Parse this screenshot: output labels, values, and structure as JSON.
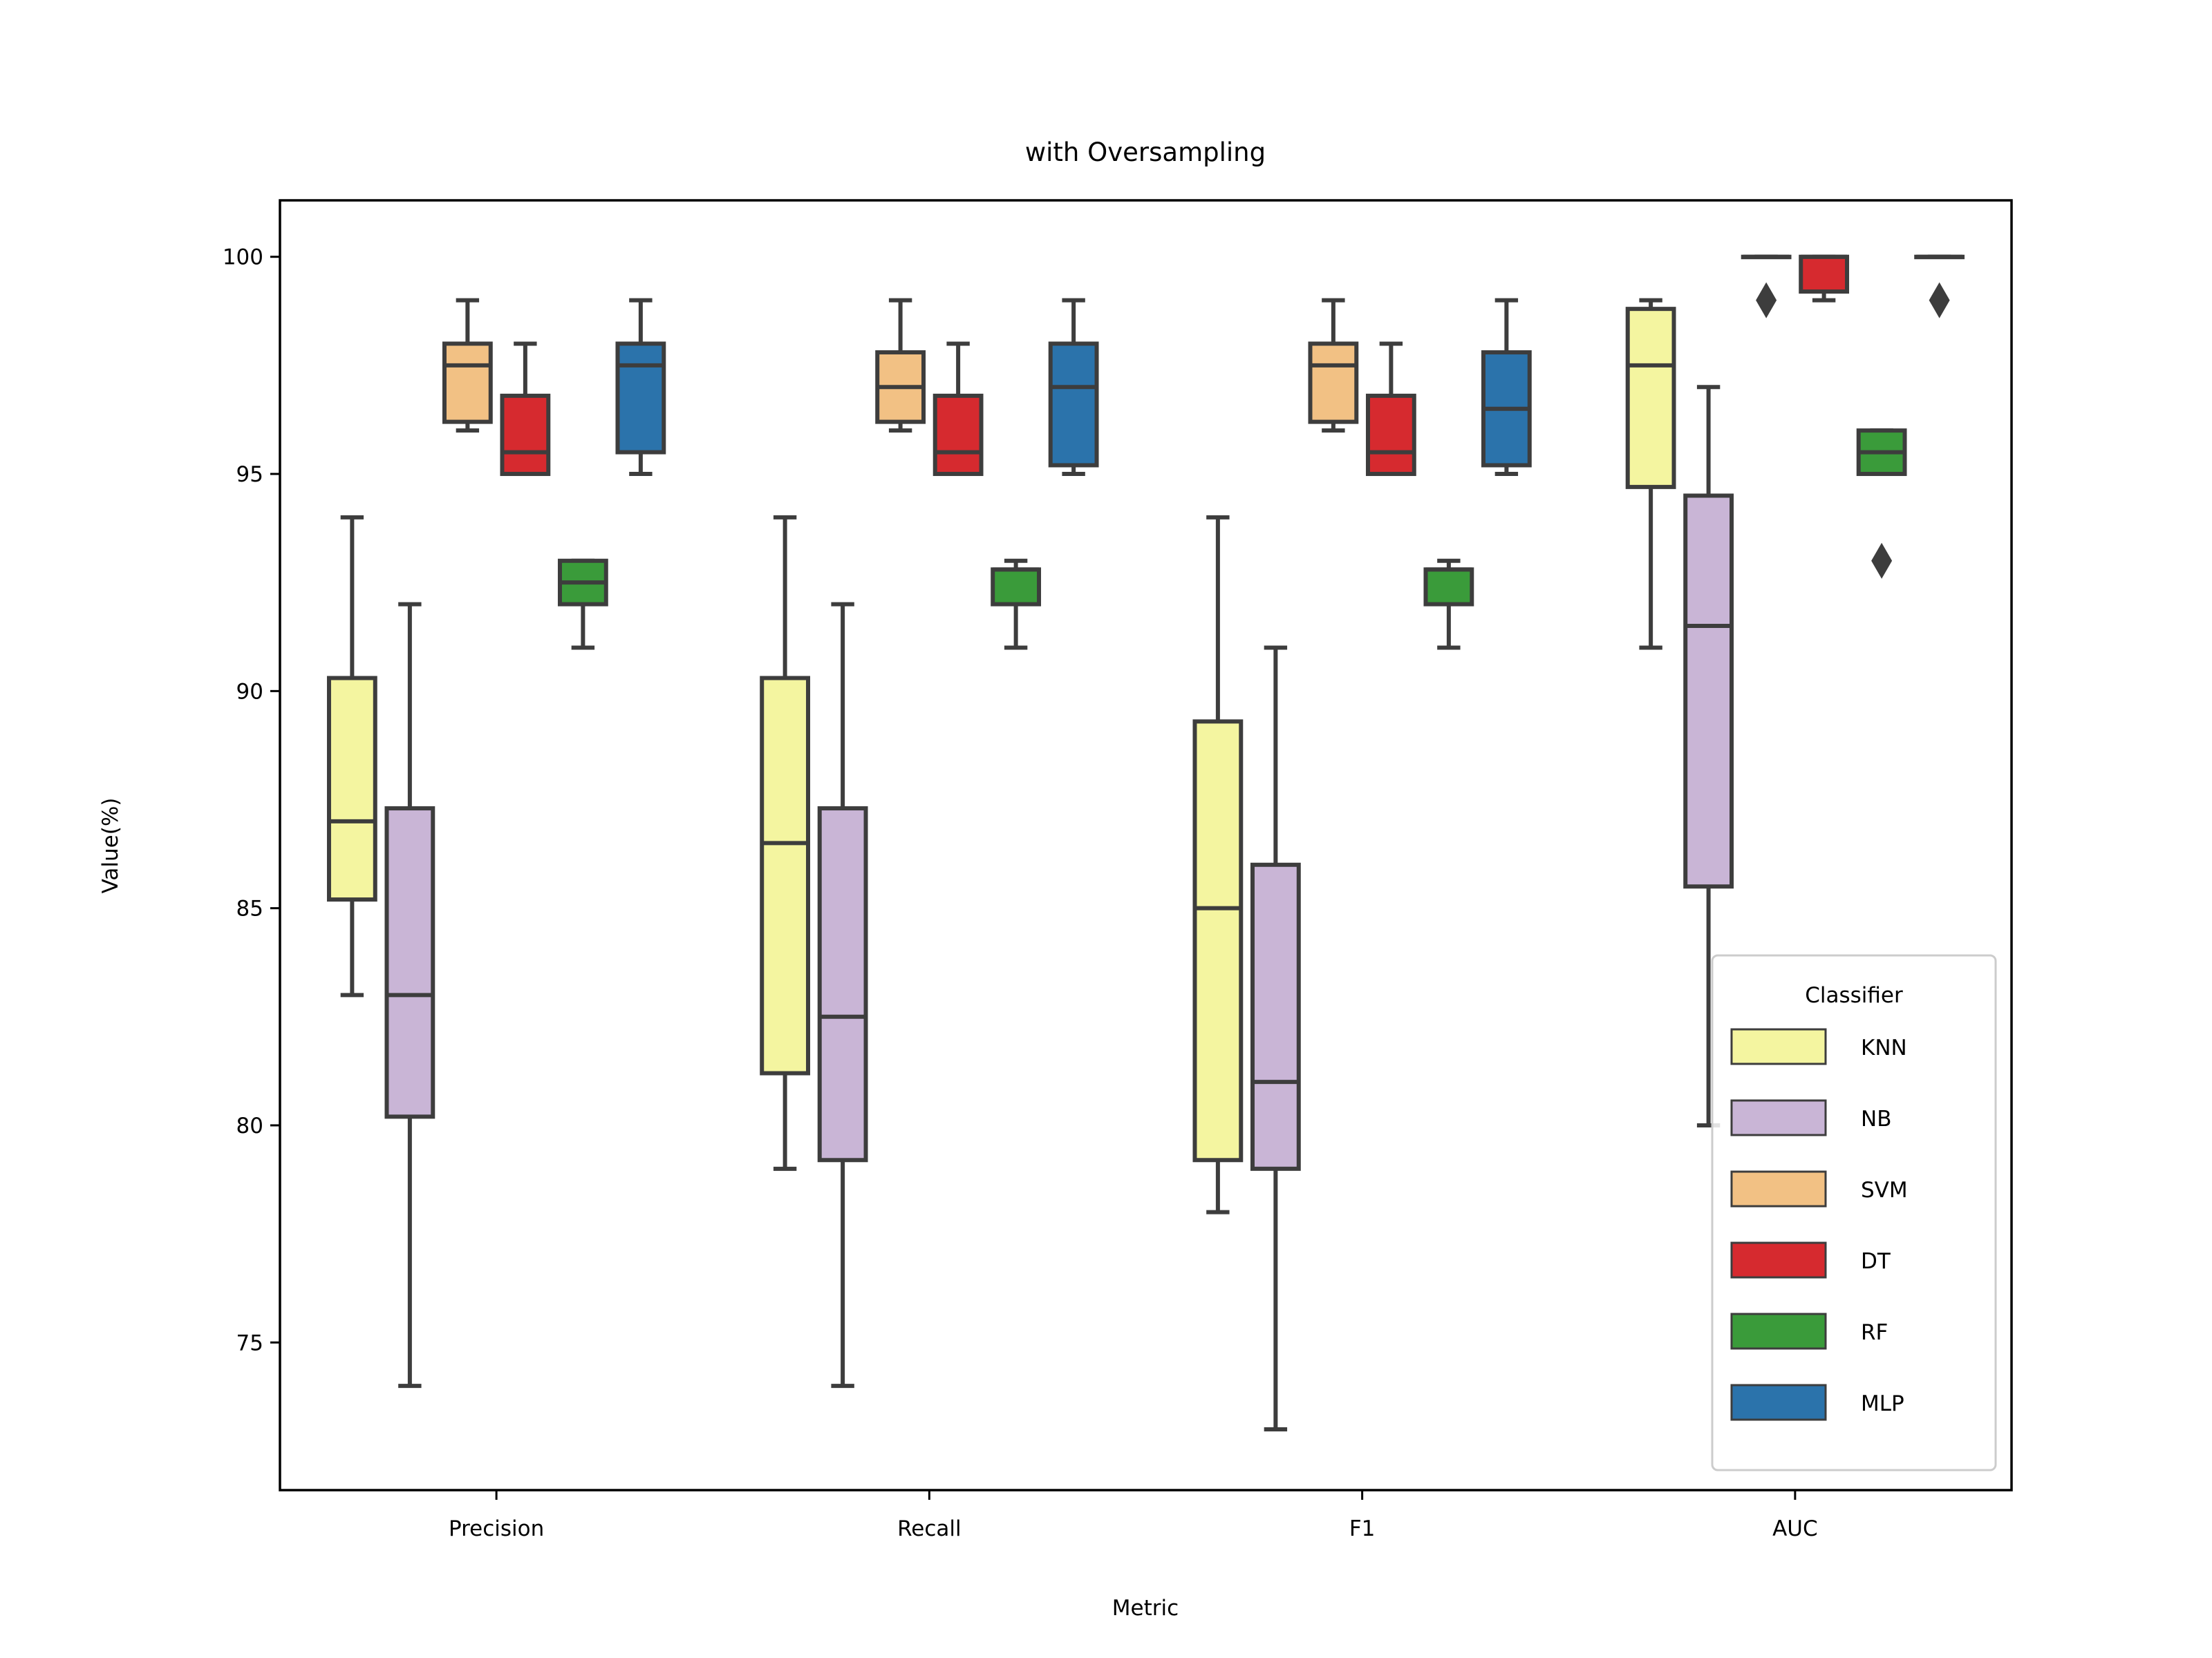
{
  "chart_data": {
    "type": "box",
    "title": "with Oversampling",
    "xlabel": "Metric",
    "ylabel": "Value(%)",
    "ylim": [
      71.6,
      101.3
    ],
    "yticks": [
      75,
      80,
      85,
      90,
      95,
      100
    ],
    "categories": [
      "Precision",
      "Recall",
      "F1",
      "AUC"
    ],
    "legend": {
      "title": "Classifier",
      "placement": "lower-right"
    },
    "grid": false,
    "series": [
      {
        "name": "KNN",
        "color": "#f4f5a0",
        "boxes": [
          {
            "whisker_low": 83,
            "q1": 85.2,
            "median": 87,
            "q3": 90.3,
            "whisker_high": 94,
            "outliers": []
          },
          {
            "whisker_low": 79,
            "q1": 81.2,
            "median": 86.5,
            "q3": 90.3,
            "whisker_high": 94,
            "outliers": []
          },
          {
            "whisker_low": 78,
            "q1": 79.2,
            "median": 85,
            "q3": 89.3,
            "whisker_high": 94,
            "outliers": []
          },
          {
            "whisker_low": 91,
            "q1": 94.7,
            "median": 97.5,
            "q3": 98.8,
            "whisker_high": 99,
            "outliers": []
          }
        ]
      },
      {
        "name": "NB",
        "color": "#c9b5d6",
        "boxes": [
          {
            "whisker_low": 74,
            "q1": 80.2,
            "median": 83,
            "q3": 87.3,
            "whisker_high": 92,
            "outliers": []
          },
          {
            "whisker_low": 74,
            "q1": 79.2,
            "median": 82.5,
            "q3": 87.3,
            "whisker_high": 92,
            "outliers": []
          },
          {
            "whisker_low": 73,
            "q1": 79,
            "median": 81,
            "q3": 86,
            "whisker_high": 91,
            "outliers": []
          },
          {
            "whisker_low": 80,
            "q1": 85.5,
            "median": 91.5,
            "q3": 94.5,
            "whisker_high": 97,
            "outliers": []
          }
        ]
      },
      {
        "name": "SVM",
        "color": "#f2c184",
        "boxes": [
          {
            "whisker_low": 96,
            "q1": 96.2,
            "median": 97.5,
            "q3": 98,
            "whisker_high": 99,
            "outliers": []
          },
          {
            "whisker_low": 96,
            "q1": 96.2,
            "median": 97,
            "q3": 97.8,
            "whisker_high": 99,
            "outliers": []
          },
          {
            "whisker_low": 96,
            "q1": 96.2,
            "median": 97.5,
            "q3": 98,
            "whisker_high": 99,
            "outliers": []
          },
          {
            "whisker_low": 100,
            "q1": 100,
            "median": 100,
            "q3": 100,
            "whisker_high": 100,
            "outliers": [
              99
            ]
          }
        ]
      },
      {
        "name": "DT",
        "color": "#d62a2f",
        "boxes": [
          {
            "whisker_low": 95,
            "q1": 95,
            "median": 95.5,
            "q3": 96.8,
            "whisker_high": 98,
            "outliers": []
          },
          {
            "whisker_low": 95,
            "q1": 95,
            "median": 95.5,
            "q3": 96.8,
            "whisker_high": 98,
            "outliers": []
          },
          {
            "whisker_low": 95,
            "q1": 95,
            "median": 95.5,
            "q3": 96.8,
            "whisker_high": 98,
            "outliers": []
          },
          {
            "whisker_low": 99,
            "q1": 99.2,
            "median": 100,
            "q3": 100,
            "whisker_high": 100,
            "outliers": []
          }
        ]
      },
      {
        "name": "RF",
        "color": "#3a9b3a",
        "boxes": [
          {
            "whisker_low": 91,
            "q1": 92,
            "median": 92.5,
            "q3": 93,
            "whisker_high": 93,
            "outliers": []
          },
          {
            "whisker_low": 91,
            "q1": 92,
            "median": 92.8,
            "q3": 92.8,
            "whisker_high": 93,
            "outliers": []
          },
          {
            "whisker_low": 91,
            "q1": 92,
            "median": 92.8,
            "q3": 92.8,
            "whisker_high": 93,
            "outliers": []
          },
          {
            "whisker_low": 95,
            "q1": 95,
            "median": 95.5,
            "q3": 96,
            "whisker_high": 96,
            "outliers": [
              93
            ]
          }
        ]
      },
      {
        "name": "MLP",
        "color": "#2b73ab",
        "boxes": [
          {
            "whisker_low": 95,
            "q1": 95.5,
            "median": 97.5,
            "q3": 98,
            "whisker_high": 99,
            "outliers": []
          },
          {
            "whisker_low": 95,
            "q1": 95.2,
            "median": 97,
            "q3": 98,
            "whisker_high": 99,
            "outliers": []
          },
          {
            "whisker_low": 95,
            "q1": 95.2,
            "median": 96.5,
            "q3": 97.8,
            "whisker_high": 99,
            "outliers": []
          },
          {
            "whisker_low": 100,
            "q1": 100,
            "median": 100,
            "q3": 100,
            "whisker_high": 100,
            "outliers": [
              99
            ]
          }
        ]
      }
    ]
  }
}
